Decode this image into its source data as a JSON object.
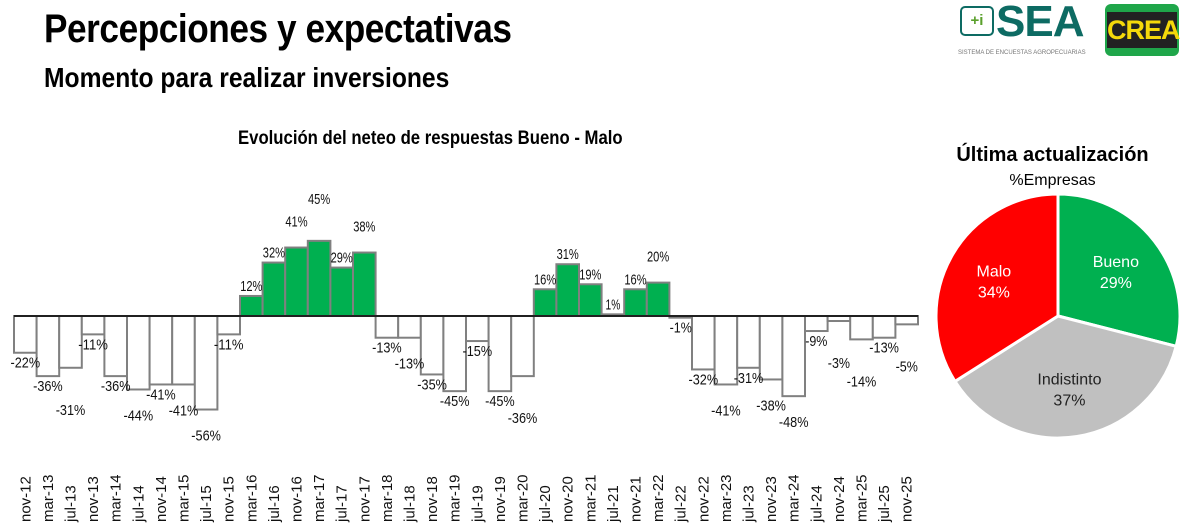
{
  "header": {
    "title": "Percepciones y expectativas",
    "subtitle": "Momento para realizar inversiones"
  },
  "logos": {
    "sea": {
      "text": "SEA",
      "icon_text": "+i",
      "tagline": "SISTEMA DE ENCUESTAS AGROPECUARIAS"
    },
    "crea": {
      "text": "CREA"
    }
  },
  "chart_data": [
    {
      "type": "bar",
      "title": "Evolución del neteo de respuestas Bueno - Malo",
      "categories": [
        "nov-12",
        "mar-13",
        "jul-13",
        "nov-13",
        "mar-14",
        "jul-14",
        "nov-14",
        "mar-15",
        "jul-15",
        "nov-15",
        "mar-16",
        "jul-16",
        "nov-16",
        "mar-17",
        "jul-17",
        "nov-17",
        "mar-18",
        "jul-18",
        "nov-18",
        "mar-19",
        "jul-19",
        "nov-19",
        "mar-20",
        "jul-20",
        "nov-20",
        "mar-21",
        "jul-21",
        "nov-21",
        "mar-22",
        "jul-22",
        "nov-22",
        "mar-23",
        "jul-23",
        "nov-23",
        "mar-24",
        "jul-24",
        "nov-24",
        "mar-25",
        "jul-25",
        "nov-25"
      ],
      "values": [
        -22,
        -36,
        -31,
        -11,
        -36,
        -44,
        -41,
        -41,
        -56,
        -11,
        12,
        32,
        41,
        45,
        29,
        38,
        -13,
        -13,
        -35,
        -45,
        -15,
        -45,
        -36,
        16,
        31,
        19,
        1,
        16,
        20,
        -1,
        -32,
        -41,
        -31,
        -38,
        -48,
        -9,
        -3,
        -14,
        -13,
        -5
      ],
      "unit": "%",
      "colors": {
        "positive": "#00b050",
        "negative": "#ffffff",
        "border": "#808080"
      },
      "grid": false
    },
    {
      "type": "pie",
      "title": "Última actualización",
      "subtitle": "%Empresas",
      "slices": [
        {
          "label": "Bueno",
          "value": 29,
          "color": "#00b050"
        },
        {
          "label": "Indistinto",
          "value": 37,
          "color": "#c0c0c0"
        },
        {
          "label": "Malo",
          "value": 34,
          "color": "#ff0000"
        }
      ]
    }
  ]
}
